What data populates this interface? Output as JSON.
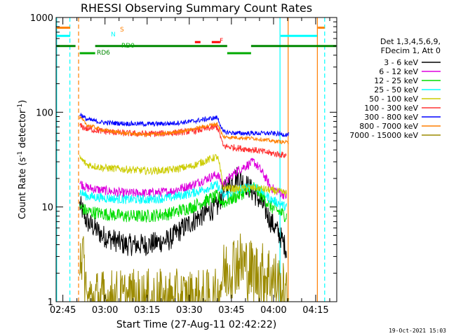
{
  "chart_data": {
    "type": "line",
    "title": "RHESSI Observing Summary Count Rates",
    "xlabel": "Start Time (27-Aug-11 02:42:22)",
    "ylabel": "Count Rate (s",
    "ylabel_sup": "-1",
    "ylabel_end": " detector",
    "ylabel_sup2": "-1",
    "ylabel_close": ")",
    "yscale": "log",
    "ylim": [
      1,
      1000
    ],
    "y_ticks": [
      "1",
      "10",
      "100",
      "1000"
    ],
    "xlim_minutes": [
      -2.4,
      97.5
    ],
    "x_ticks": [
      "02:45",
      "03:00",
      "03:15",
      "03:30",
      "03:45",
      "04:00",
      "04:15"
    ],
    "x_tick_minutes": [
      0,
      15,
      30,
      45,
      60,
      75,
      90
    ],
    "legend_header": [
      "Det 1,3,4,5,6,9,",
      "FDecim 1, Att 0"
    ],
    "legend_position": "right",
    "series": [
      {
        "name": "3 - 6 keV",
        "color": "#000000",
        "base": [
          10.5,
          7,
          5,
          4,
          4,
          4.5,
          7,
          10,
          14,
          21,
          14,
          7,
          3.6
        ],
        "noise": 0.12
      },
      {
        "name": "6 - 12 keV",
        "color": "#dd00dd",
        "base": [
          18,
          16,
          15,
          14,
          14,
          14.5,
          17,
          22,
          17,
          24,
          30,
          16,
          13
        ],
        "noise": 0.05
      },
      {
        "name": "12 - 25 keV",
        "color": "#00dd00",
        "base": [
          10,
          9,
          8.5,
          8,
          8,
          8.5,
          10,
          13,
          11,
          13,
          16,
          10,
          8
        ],
        "noise": 0.07
      },
      {
        "name": "25 - 50 keV",
        "color": "#00ffff",
        "base": [
          14.5,
          13,
          12.5,
          12,
          12,
          12.5,
          14,
          17,
          13,
          15,
          17,
          12,
          10
        ],
        "noise": 0.05
      },
      {
        "name": "50 - 100 keV",
        "color": "#cccc00",
        "base": [
          33,
          28,
          26,
          25,
          24,
          24.5,
          27,
          34,
          16,
          15.5,
          16,
          15,
          14
        ],
        "noise": 0.04
      },
      {
        "name": "100 - 300 keV",
        "color": "#ff3333",
        "base": [
          72,
          67,
          63,
          60,
          59,
          60,
          63,
          70,
          44,
          42,
          40,
          37,
          35
        ],
        "noise": 0.035
      },
      {
        "name": "300 - 800 keV",
        "color": "#0000ff",
        "base": [
          96,
          84,
          78,
          76,
          75,
          76,
          80,
          88,
          62,
          60,
          60,
          60,
          58
        ],
        "noise": 0.025
      },
      {
        "name": "800 - 7000 keV",
        "color": "#ff7f00",
        "base": [
          88,
          74,
          65,
          60,
          58,
          60,
          66,
          76,
          55,
          54,
          53,
          50,
          48
        ],
        "noise": 0.02
      },
      {
        "name": "7000 - 15000 keV",
        "color": "#9b8a00",
        "base": [
          4,
          1,
          1,
          1,
          1,
          1,
          1,
          1,
          1.9,
          2.7,
          2,
          1.9,
          1
        ],
        "noise": 0.35
      }
    ],
    "segment_minutes": [
      6,
      8.5,
      14,
      22,
      30,
      38,
      46,
      55,
      57,
      62,
      68,
      74,
      79.5
    ],
    "data_end_minutes": [
      79.8,
      79.8,
      79.8,
      79.8,
      79.8,
      79.8,
      80.5,
      80.5,
      80.5
    ],
    "flags": [
      {
        "label": "S",
        "color": "#ff7f00",
        "level": 780
      },
      {
        "label": "N",
        "color": "#00ffff",
        "level": 640
      },
      {
        "label": "RD0",
        "color": "#00aa00",
        "level": 420
      },
      {
        "label": "RD6",
        "color": "#008800",
        "level": 500
      },
      {
        "label": "F",
        "color": "#ff0000",
        "level": 550
      }
    ],
    "event_lines": [
      {
        "color": "#00ffff",
        "style": "solid",
        "minute": -2.2
      },
      {
        "color": "#00ffff",
        "style": "dashed",
        "minute": 2.5
      },
      {
        "color": "#ff7f00",
        "style": "dashed",
        "minute": 5.6
      },
      {
        "color": "#00ffff",
        "style": "solid",
        "minute": 77.3
      },
      {
        "color": "#ff7f00",
        "style": "solid",
        "minute": 80.2
      },
      {
        "color": "#ff7f00",
        "style": "solid",
        "minute": 90.6
      },
      {
        "color": "#00ffff",
        "style": "dashed",
        "minute": 93.2
      }
    ]
  },
  "footer": {
    "timestamp": "19-Oct-2021 15:03"
  }
}
